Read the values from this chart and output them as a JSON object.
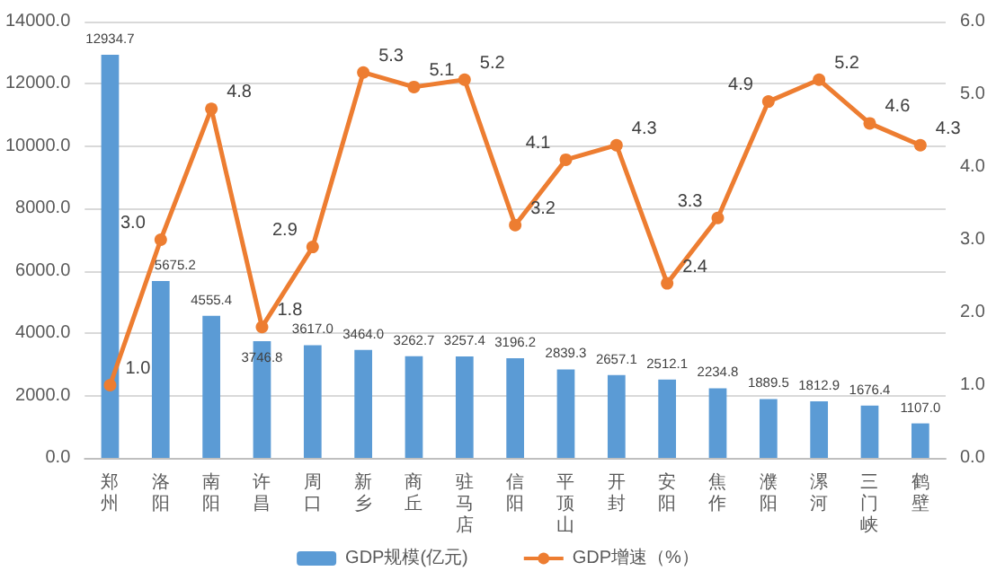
{
  "chart_data": {
    "type": "bar",
    "categories": [
      "郑州",
      "洛阳",
      "南阳",
      "许昌",
      "周口",
      "新乡",
      "商丘",
      "驻马店",
      "信阳",
      "平顶山",
      "开封",
      "安阳",
      "焦作",
      "濮阳",
      "漯河",
      "三门峡",
      "鹤壁"
    ],
    "series": [
      {
        "name": "GDP规模(亿元)",
        "color": "#5b9bd5",
        "values": [
          12934.7,
          5675.2,
          4555.4,
          3746.8,
          3617.0,
          3464.0,
          3262.7,
          3257.4,
          3196.2,
          2839.3,
          2657.1,
          2512.1,
          2234.8,
          1889.5,
          1812.9,
          1676.4,
          1107.0
        ],
        "value_labels": [
          "12934.7",
          "5675.2",
          "4555.4",
          "3746.8",
          "3617.0",
          "3464.0",
          "3262.7",
          "3257.4",
          "3196.2",
          "2839.3",
          "2657.1",
          "2512.1",
          "2234.8",
          "1889.5",
          "1812.9",
          "1676.4",
          "1107.0"
        ]
      },
      {
        "name": "GDP增速（%）",
        "type": "line",
        "axis": "y2",
        "color": "#ed7d31",
        "values": [
          1.0,
          3.0,
          4.8,
          1.8,
          2.9,
          5.3,
          5.1,
          5.2,
          3.2,
          4.1,
          4.3,
          2.4,
          3.3,
          4.9,
          5.2,
          4.6,
          4.3
        ],
        "value_labels": [
          "1.0",
          "3.0",
          "4.8",
          "1.8",
          "2.9",
          "5.3",
          "5.1",
          "5.2",
          "3.2",
          "4.1",
          "4.3",
          "2.4",
          "3.3",
          "4.9",
          "5.2",
          "4.6",
          "4.3"
        ]
      }
    ],
    "ylim": [
      0,
      14000
    ],
    "yticks": [
      {
        "value": 0,
        "label": "0.0"
      },
      {
        "value": 2000,
        "label": "2000.0"
      },
      {
        "value": 4000,
        "label": "4000.0"
      },
      {
        "value": 6000,
        "label": "6000.0"
      },
      {
        "value": 8000,
        "label": "8000.0"
      },
      {
        "value": 10000,
        "label": "10000.0"
      },
      {
        "value": 12000,
        "label": "12000.0"
      },
      {
        "value": 14000,
        "label": "14000.0"
      }
    ],
    "y2lim": [
      0,
      6
    ],
    "y2ticks": [
      {
        "value": 0,
        "label": "0.0"
      },
      {
        "value": 1,
        "label": "1.0"
      },
      {
        "value": 2,
        "label": "2.0"
      },
      {
        "value": 3,
        "label": "3.0"
      },
      {
        "value": 4,
        "label": "4.0"
      },
      {
        "value": 5,
        "label": "5.0"
      },
      {
        "value": 6,
        "label": "6.0"
      }
    ],
    "grid": "y",
    "legend": "bottom",
    "marker": "circle",
    "line_style": "solid"
  }
}
